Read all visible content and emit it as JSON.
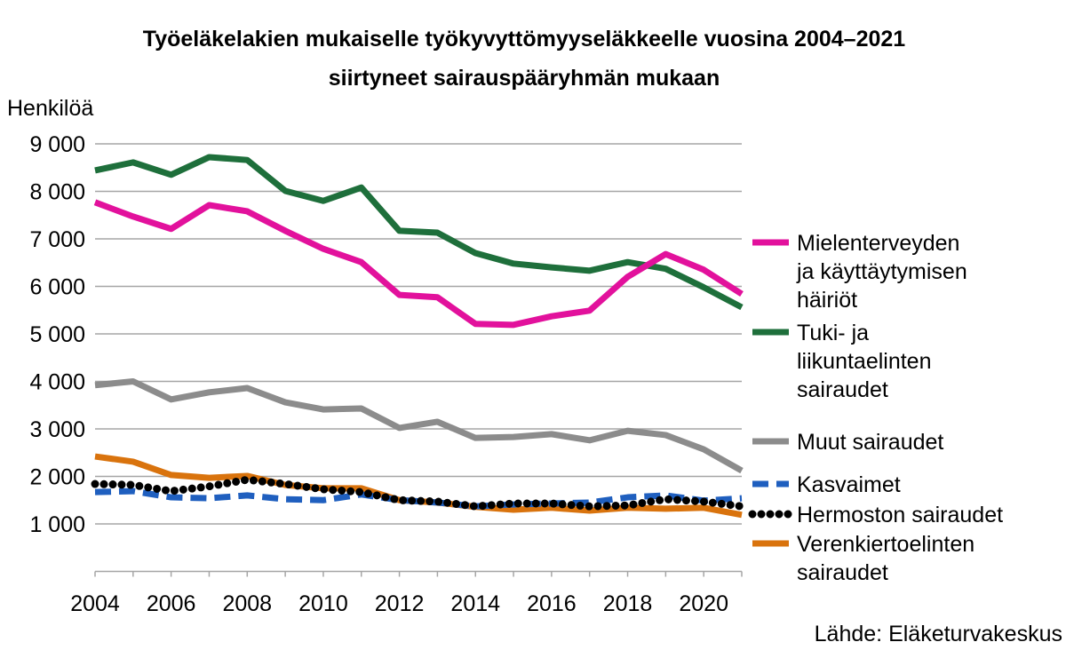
{
  "chart_data": {
    "type": "line",
    "title": "Työeläkelakien mukaiselle työkyvyttömyyseläkkeelle vuosina 2004–2021",
    "subtitle": "siirtyneet sairauspääryhmän mukaan",
    "ylabel": "Henkilöä",
    "xlabel": "",
    "source": "Lähde: Eläketurvakeskus",
    "ylim": [
      0,
      9000
    ],
    "yticks": [
      1000,
      2000,
      3000,
      4000,
      5000,
      6000,
      7000,
      8000,
      9000
    ],
    "ytick_labels": [
      "1 000",
      "2 000",
      "3 000",
      "4 000",
      "5 000",
      "6 000",
      "7 000",
      "8 000",
      "9 000"
    ],
    "xticks": [
      2004,
      2006,
      2008,
      2010,
      2012,
      2014,
      2016,
      2018,
      2020
    ],
    "xtick_labels": [
      "2004",
      "2006",
      "2008",
      "2010",
      "2012",
      "2014",
      "2016",
      "2018",
      "2020"
    ],
    "grid": true,
    "legend_position": "right",
    "x": [
      2004,
      2005,
      2006,
      2007,
      2008,
      2009,
      2010,
      2011,
      2012,
      2013,
      2014,
      2015,
      2016,
      2017,
      2018,
      2019,
      2020,
      2021
    ],
    "series": [
      {
        "name": "Mielenterveyden ja käyttäytymisen häiriöt",
        "legend_lines": [
          "Mielenterveyden",
          "ja käyttäytymisen",
          "häiriöt"
        ],
        "color": "#E2119C",
        "style": "solid",
        "values": [
          7770,
          7470,
          7210,
          7710,
          7580,
          7170,
          6790,
          6510,
          5820,
          5770,
          5210,
          5190,
          5370,
          5490,
          6200,
          6680,
          6350,
          5840
        ]
      },
      {
        "name": "Tuki- ja liikuntaelinten sairaudet",
        "legend_lines": [
          "Tuki- ja",
          "liikuntaelinten",
          "sairaudet"
        ],
        "color": "#1E6F3B",
        "style": "solid",
        "values": [
          8440,
          8610,
          8350,
          8720,
          8660,
          8010,
          7800,
          8080,
          7170,
          7130,
          6700,
          6480,
          6400,
          6330,
          6510,
          6370,
          5980,
          5560
        ]
      },
      {
        "name": "Muut sairaudet",
        "legend_lines": [
          "Muut sairaudet"
        ],
        "color": "#8C8C8C",
        "style": "solid",
        "values": [
          3920,
          4000,
          3620,
          3770,
          3860,
          3560,
          3410,
          3430,
          3020,
          3150,
          2810,
          2830,
          2890,
          2760,
          2960,
          2870,
          2570,
          2120
        ]
      },
      {
        "name": "Kasvaimet",
        "legend_lines": [
          "Kasvaimet"
        ],
        "color": "#1F5FBF",
        "style": "dashed",
        "values": [
          1670,
          1690,
          1560,
          1540,
          1600,
          1520,
          1500,
          1620,
          1500,
          1450,
          1370,
          1410,
          1430,
          1450,
          1560,
          1600,
          1490,
          1540
        ]
      },
      {
        "name": "Hermoston sairaudet",
        "legend_lines": [
          "Hermoston sairaudet"
        ],
        "color": "#000000",
        "style": "dotted",
        "values": [
          1840,
          1820,
          1690,
          1790,
          1930,
          1840,
          1730,
          1670,
          1500,
          1470,
          1370,
          1430,
          1430,
          1370,
          1390,
          1520,
          1470,
          1370
        ]
      },
      {
        "name": "Verenkiertoelinten sairaudet",
        "legend_lines": [
          "Verenkiertoelinten",
          "sairaudet"
        ],
        "color": "#D9730D",
        "style": "solid",
        "values": [
          2420,
          2310,
          2030,
          1970,
          2010,
          1820,
          1750,
          1750,
          1500,
          1450,
          1360,
          1300,
          1340,
          1280,
          1340,
          1320,
          1340,
          1190
        ]
      }
    ]
  }
}
